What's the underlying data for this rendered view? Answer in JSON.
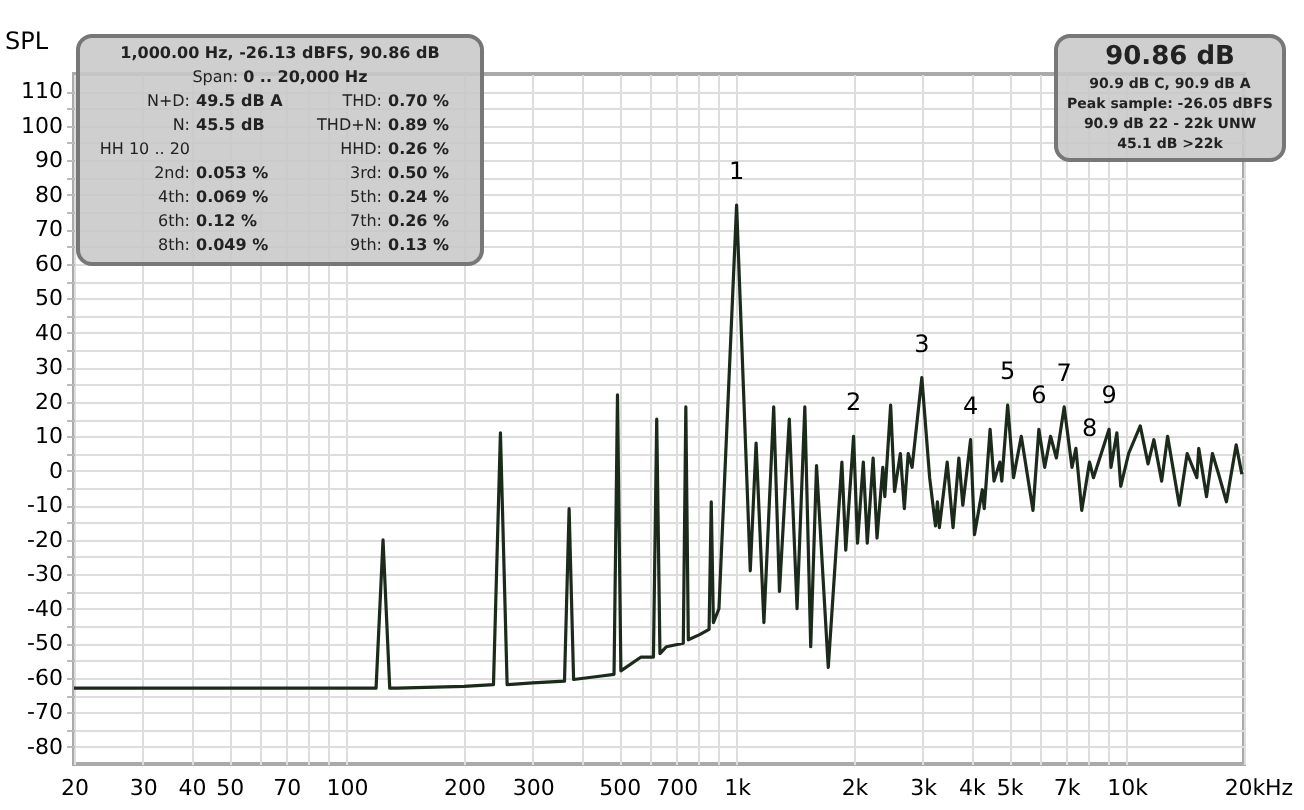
{
  "chart_data": {
    "type": "line",
    "ylabel": "SPL",
    "log": "x",
    "grid": true,
    "marker": "none",
    "line_style": "solid",
    "xlim": [
      20,
      20000
    ],
    "xticks": [
      20,
      30,
      40,
      50,
      {
        "value": 60,
        "label": null
      },
      70,
      {
        "value": 80,
        "label": null
      },
      {
        "value": 90,
        "label": null
      },
      100,
      200,
      300,
      {
        "value": 400,
        "label": null
      },
      500,
      {
        "value": 600,
        "label": null
      },
      700,
      {
        "value": 800,
        "label": null
      },
      {
        "value": 900,
        "label": null
      },
      {
        "value": 1000,
        "label": "1k"
      },
      {
        "value": 2000,
        "label": "2k"
      },
      {
        "value": 3000,
        "label": "3k"
      },
      {
        "value": 4000,
        "label": "4k"
      },
      {
        "value": 5000,
        "label": "5k"
      },
      {
        "value": 6000,
        "label": null
      },
      {
        "value": 7000,
        "label": "7k"
      },
      {
        "value": 8000,
        "label": null
      },
      {
        "value": 9000,
        "label": null
      },
      {
        "value": 10000,
        "label": "10k"
      },
      {
        "value": 20000,
        "label": "20k"
      }
    ],
    "xlabel": "Hz",
    "ylim": [
      -85,
      115
    ],
    "yticks": [
      -80,
      {
        "value": -75,
        "label": null
      },
      -70,
      {
        "value": -65,
        "label": null
      },
      -60,
      {
        "value": -55,
        "label": null
      },
      -50,
      {
        "value": -45,
        "label": null
      },
      -40,
      {
        "value": -35,
        "label": null
      },
      -30,
      {
        "value": -25,
        "label": null
      },
      -20,
      {
        "value": -15,
        "label": null
      },
      -10,
      {
        "value": -5,
        "label": null
      },
      0,
      {
        "value": 5,
        "label": null
      },
      10,
      {
        "value": 15,
        "label": null
      },
      20,
      {
        "value": 25,
        "label": null
      },
      30,
      {
        "value": 35,
        "label": null
      },
      40,
      {
        "value": 45,
        "label": null
      },
      50,
      {
        "value": 55,
        "label": null
      },
      60,
      {
        "value": 65,
        "label": null
      },
      70,
      {
        "value": 75,
        "label": null
      },
      80,
      {
        "value": 85,
        "label": null
      },
      90,
      {
        "value": 95,
        "label": null
      },
      100,
      {
        "value": 105,
        "label": null
      },
      110
    ],
    "series": [
      {
        "color": "#1c2a1c",
        "x": [
          20,
          60,
          100,
          115,
          119,
          124,
          129,
          135,
          200,
          238,
          248,
          258,
          300,
          362,
          372,
          382,
          450,
          485,
          495,
          505,
          569,
          612,
          624,
          636,
          661,
          730,
          741,
          752,
          804,
          850,
          861,
          872,
          901,
          1000,
          1084,
          1122,
          1175,
          1245,
          1288,
          1365,
          1429,
          1496,
          1549,
          1603,
          1718,
          1862,
          1905,
          1995,
          2042,
          2113,
          2163,
          2239,
          2291,
          2371,
          2399,
          2483,
          2541,
          2630,
          2692,
          2754,
          2818,
          2985,
          3126,
          3236,
          3273,
          3311,
          3467,
          3589,
          3715,
          3802,
          3981,
          4074,
          4266,
          4315,
          4467,
          4571,
          4732,
          4786,
          4955,
          5129,
          5370,
          5754,
          5957,
          6166,
          6383,
          6607,
          6918,
          7244,
          7413,
          7674,
          8035,
          8222,
          9016,
          9120,
          9441,
          9661,
          10120,
          10840,
          11350,
          11750,
          12300,
          12740,
          13650,
          14300,
          15140,
          15310,
          16030,
          16600,
          17220,
          18030,
          19100,
          19750
        ],
        "values": [
          -63,
          -63,
          -63,
          -63,
          -63,
          -20,
          -63,
          -63,
          -62.5,
          -62,
          11,
          -62,
          -61.5,
          -61,
          -11,
          -60.5,
          -59.5,
          -59,
          22,
          -58,
          -54,
          -54,
          15,
          -53,
          -51,
          -50,
          18.5,
          -49,
          -47.5,
          -46,
          -9,
          -44,
          -40,
          77,
          -29,
          8,
          -44,
          18.5,
          -35,
          15,
          -40,
          18.5,
          -51,
          1.5,
          -57,
          2.5,
          -23,
          10,
          -21,
          2.5,
          -21,
          3.7,
          -19.5,
          1,
          -7.5,
          19,
          -6,
          5,
          -11,
          5,
          1,
          27,
          -2,
          -16,
          -9,
          -16.5,
          2.5,
          -16.5,
          3.7,
          -10,
          9,
          -18.5,
          -5.5,
          -11,
          12,
          -3,
          2.5,
          -3,
          19,
          -2,
          10,
          -11.5,
          12,
          1,
          10,
          3.7,
          18.5,
          1,
          6.5,
          -11.5,
          2.5,
          -2,
          12,
          1,
          11,
          -4.5,
          5,
          13,
          2,
          9,
          -3,
          10,
          -10,
          5,
          -2,
          6.5,
          -7.5,
          5,
          -1,
          -9,
          7.5,
          -1
        ]
      }
    ],
    "annotations": [
      "1,000.00 Hz, -26.13 dBFS, 90.86 dB",
      "Span: 0 .. 20,000 Hz",
      "N+D: 49.5 dB A",
      "THD: 0.70 %",
      "N: 45.5 dB",
      "THD+N: 0.89 %",
      "HH 10 .. 20",
      "HHD: 0.26 %",
      "2nd: 0.053 %",
      "3rd: 0.50 %",
      "4th: 0.069 %",
      "5th: 0.24 %",
      "6th: 0.12 %",
      "7th: 0.26 %",
      "8th: 0.049 %",
      "9th: 0.13 %",
      "90.86 dB",
      "90.9 dB C, 90.9 dB A",
      "Peak sample: -26.05 dBFS",
      "90.9 dB 22 - 22k UNW",
      "45.1 dB >22k",
      {
        "text": "1",
        "x": 1000,
        "y": 77
      },
      {
        "text": "2",
        "x": 1995,
        "y": 10
      },
      {
        "text": "3",
        "x": 2985,
        "y": 27
      },
      {
        "text": "4",
        "x": 3981,
        "y": 9
      },
      {
        "text": "5",
        "x": 4955,
        "y": 19
      },
      {
        "text": "6",
        "x": 5957,
        "y": 12
      },
      {
        "text": "7",
        "x": 6918,
        "y": 18.5
      },
      {
        "text": "8",
        "x": 8035,
        "y": 2.5
      },
      {
        "text": "9",
        "x": 9016,
        "y": 12
      }
    ]
  }
}
